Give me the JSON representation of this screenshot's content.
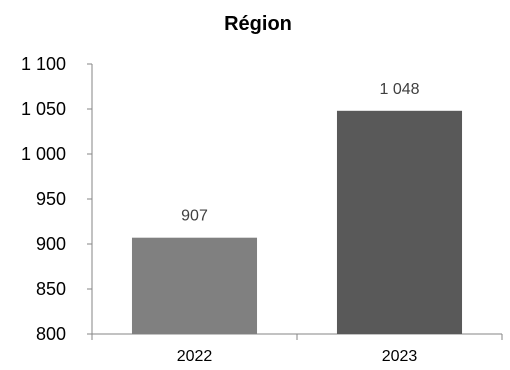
{
  "chart_data": {
    "type": "bar",
    "title": "Région",
    "xlabel": "",
    "ylabel": "",
    "categories": [
      "2022",
      "2023"
    ],
    "values": [
      907,
      1048
    ],
    "value_labels": [
      "907",
      "1 048"
    ],
    "ylim": [
      800,
      1100
    ],
    "yticks": [
      800,
      850,
      900,
      950,
      1000,
      1050,
      1100
    ],
    "ytick_labels": [
      "800",
      "850",
      "900",
      "950",
      "1 000",
      "1 050",
      "1 100"
    ],
    "grid": false,
    "legend": "none",
    "colors": [
      "#808080",
      "#595959"
    ]
  }
}
